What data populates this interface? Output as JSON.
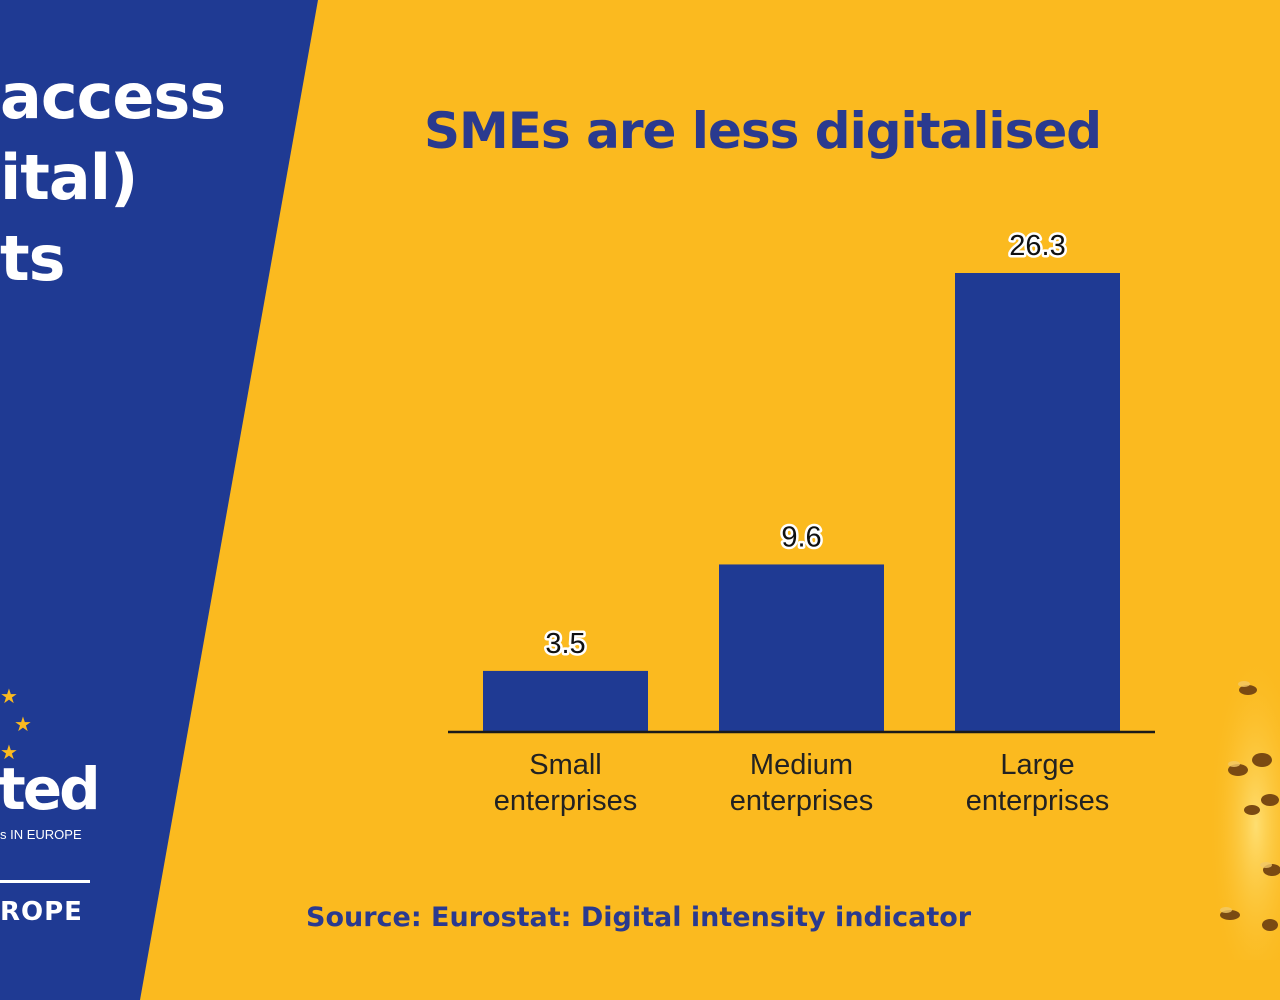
{
  "left_panel": {
    "heading_lines": [
      "access",
      "ital)",
      "ts"
    ],
    "logo": {
      "stars": [
        "★",
        "★",
        "★"
      ],
      "word": "ted",
      "tagline": "s IN EUROPE",
      "region": "ROPE"
    }
  },
  "colors": {
    "panel_blue": "#1F3A93",
    "background_yellow": "#FBBA1F",
    "bar_blue": "#1F3A93",
    "title_blue": "#2A3A8F"
  },
  "source_note": "Source: Eurostat: Digital intensity indicator",
  "chart_data": {
    "type": "bar",
    "title": "SMEs are less digitalised",
    "categories": [
      [
        "Small",
        "enterprises"
      ],
      [
        "Medium",
        "enterprises"
      ],
      [
        "Large",
        "enterprises"
      ]
    ],
    "values": [
      3.5,
      9.6,
      26.3
    ],
    "data_labels": [
      "3.5",
      "9.6",
      "26.3"
    ],
    "xlabel": "",
    "ylabel": "",
    "ylim": [
      0,
      26.3
    ],
    "grid": false,
    "legend": "none"
  }
}
